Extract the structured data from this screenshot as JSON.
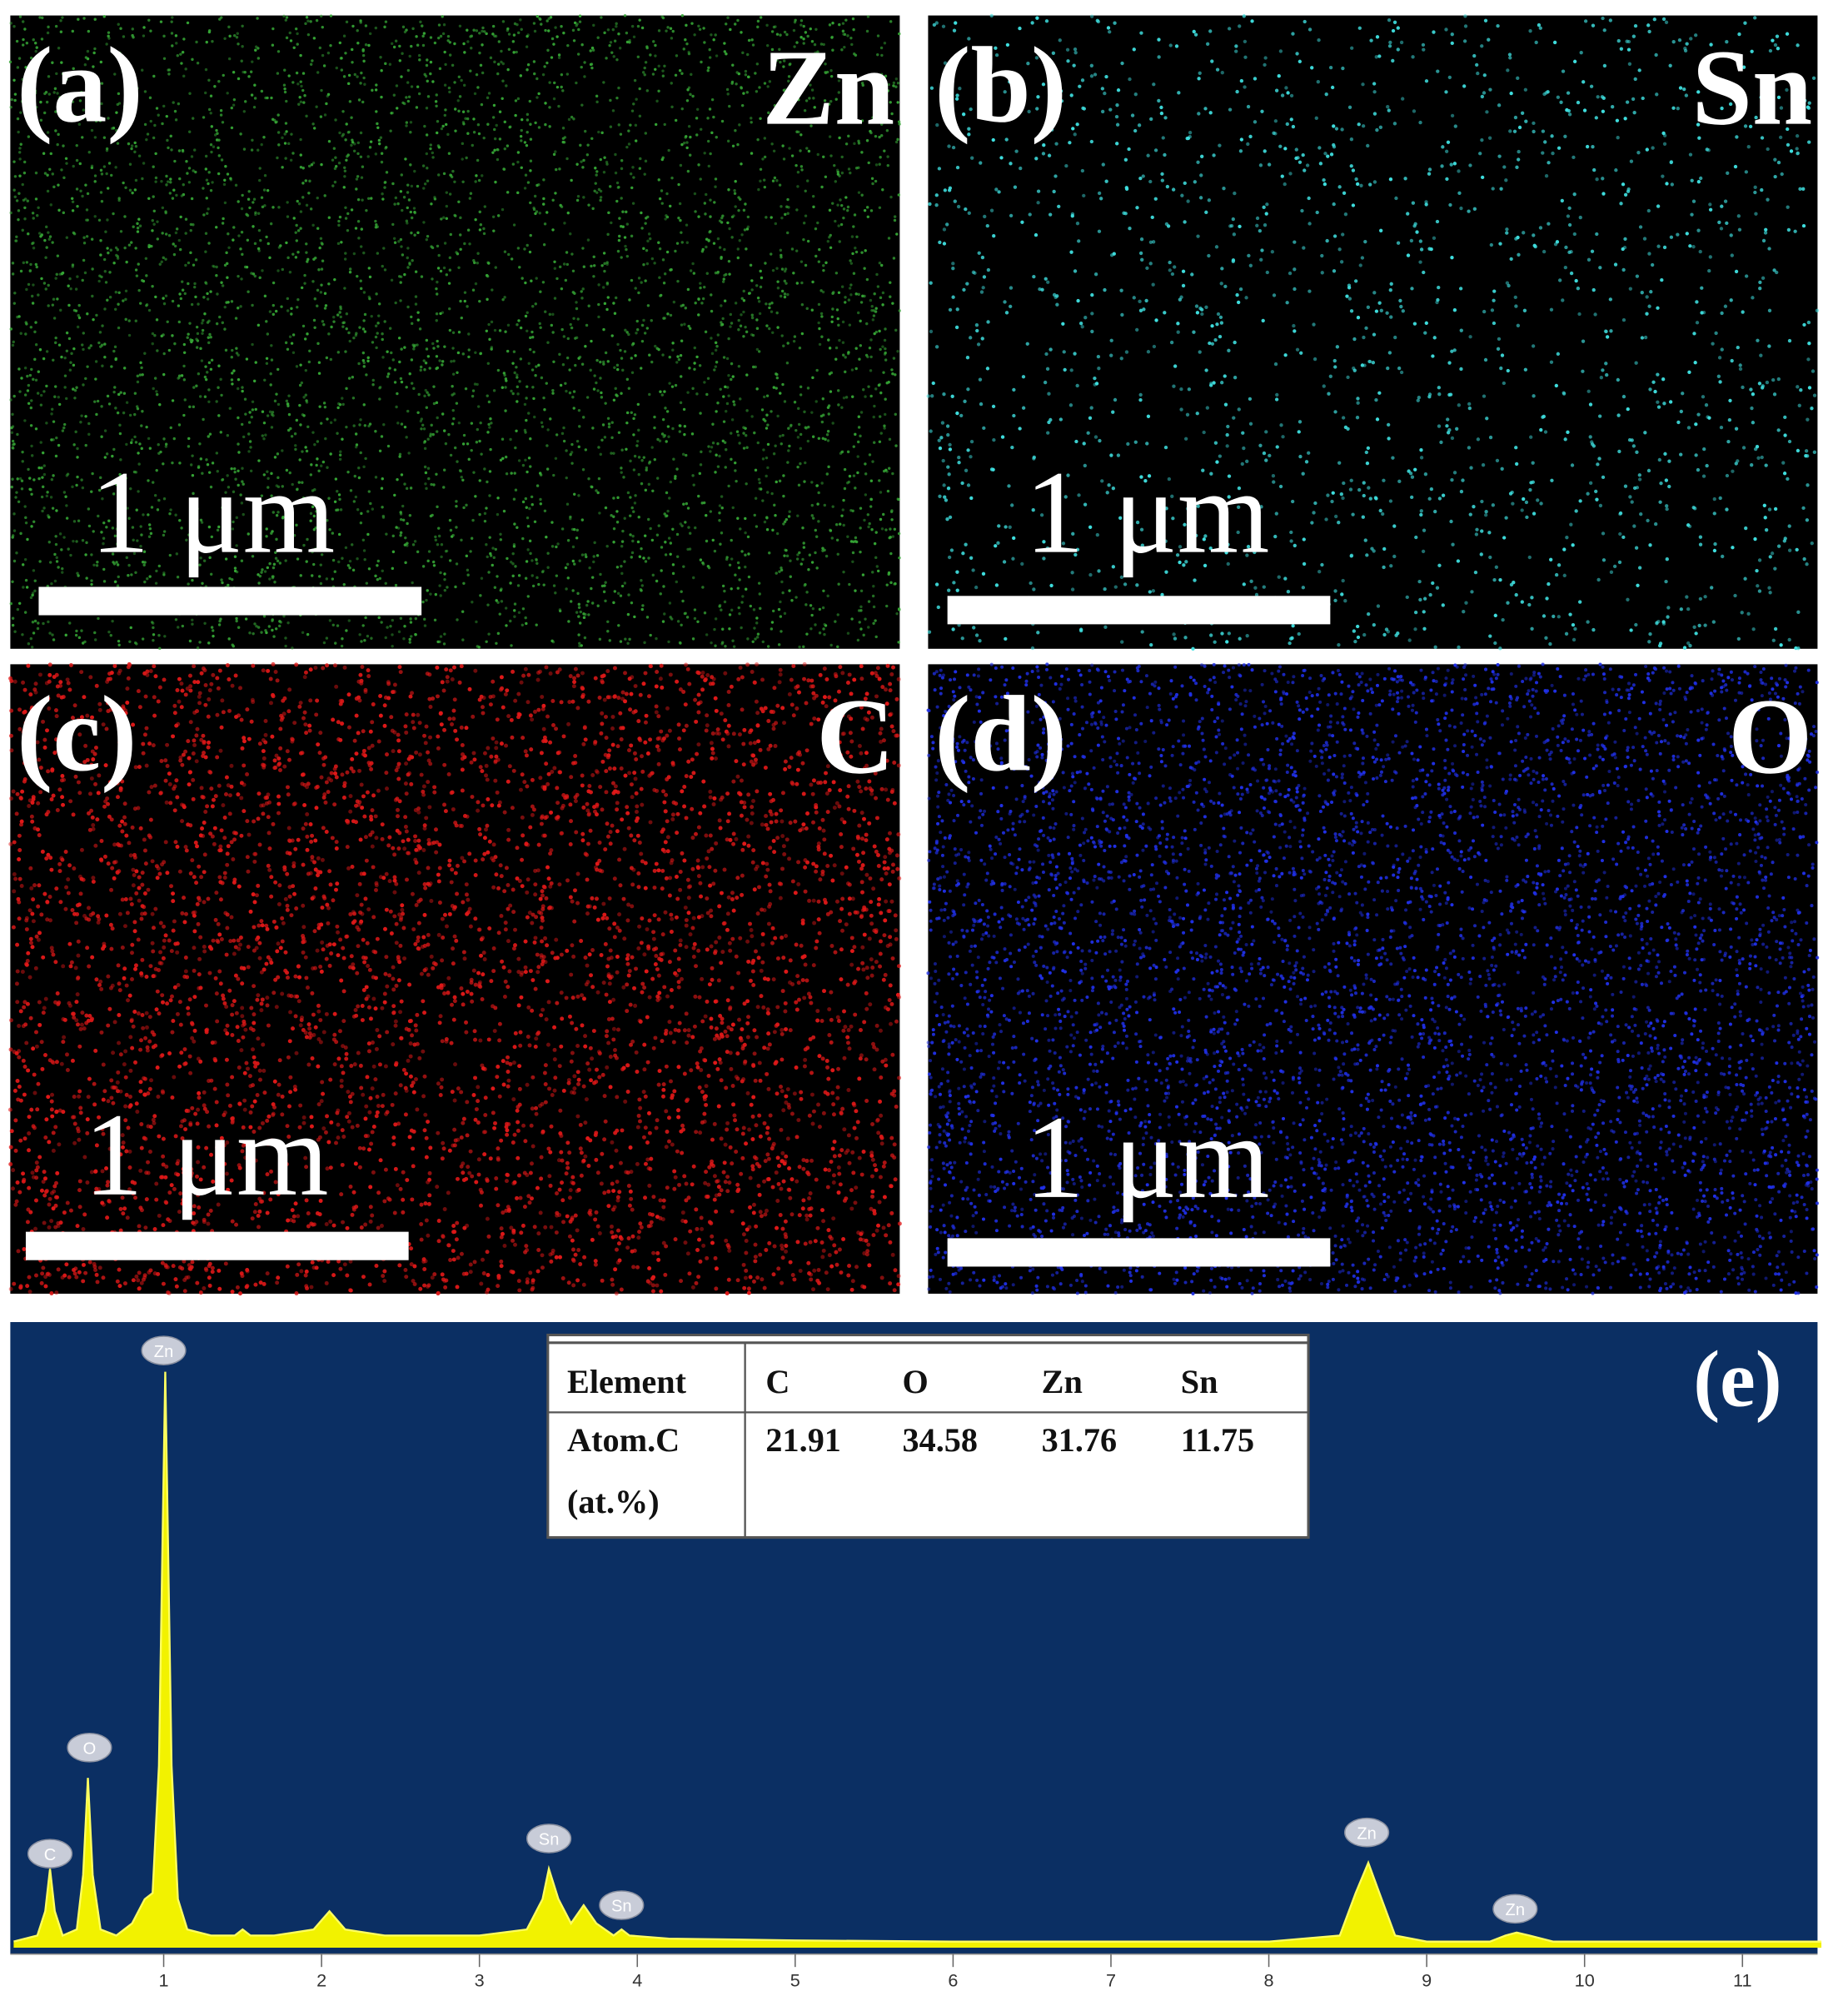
{
  "panels": [
    {
      "label": "(a)",
      "element": "Zn",
      "scale_text": "1 μm",
      "color": "#35a535"
    },
    {
      "label": "(b)",
      "element": "Sn",
      "scale_text": "1 μm",
      "color": "#3fe0e0"
    },
    {
      "label": "(c)",
      "element": "C",
      "scale_text": "1 μm",
      "color": "#e01818"
    },
    {
      "label": "(d)",
      "element": "O",
      "scale_text": "1 μm",
      "color": "#2030e8"
    }
  ],
  "table": {
    "header": [
      "Element",
      "C",
      "O",
      "Zn",
      "Sn"
    ],
    "row_label": [
      "Atom.C",
      "(at.%)"
    ],
    "values": [
      21.91,
      34.58,
      31.76,
      11.75
    ]
  },
  "chart_data": {
    "type": "area",
    "label": "(e)",
    "color": "#f2f200",
    "background": "#0b2f63",
    "x": [
      0.05,
      0.2,
      0.25,
      0.28,
      0.31,
      0.36,
      0.45,
      0.49,
      0.52,
      0.55,
      0.6,
      0.7,
      0.8,
      0.88,
      0.93,
      0.97,
      1.01,
      1.05,
      1.09,
      1.15,
      1.3,
      1.45,
      1.5,
      1.55,
      1.7,
      1.95,
      2.05,
      2.15,
      2.4,
      3.0,
      3.3,
      3.4,
      3.44,
      3.5,
      3.58,
      3.66,
      3.74,
      3.85,
      3.9,
      3.95,
      4.2,
      5,
      6,
      7,
      8,
      8.45,
      8.55,
      8.63,
      8.7,
      8.8,
      9.0,
      9.4,
      9.5,
      9.57,
      9.65,
      9.8,
      10.5,
      11.5
    ],
    "values": [
      1,
      2,
      6,
      13,
      6,
      2,
      3,
      12,
      28,
      12,
      3,
      2,
      4,
      8,
      9,
      30,
      95,
      30,
      8,
      3,
      2,
      2,
      3,
      2,
      2,
      3,
      6,
      3,
      2,
      2,
      3,
      8,
      13,
      8,
      4,
      7,
      4,
      2,
      3,
      2,
      1.5,
      1.2,
      1,
      1,
      1,
      2,
      9,
      14,
      9,
      2,
      1,
      1,
      2,
      2.5,
      2,
      1,
      1,
      1
    ],
    "xlim": [
      0,
      11.5
    ],
    "ylim": [
      0,
      100
    ],
    "xticks": [
      1,
      2,
      3,
      4,
      5,
      6,
      7,
      8,
      9,
      10,
      11
    ],
    "peak_labels": [
      {
        "text": "C",
        "x": 0.28,
        "y": 15.5
      },
      {
        "text": "O",
        "x": 0.53,
        "y": 33
      },
      {
        "text": "Zn",
        "x": 1.0,
        "y": 98.5
      },
      {
        "text": "Sn",
        "x": 3.44,
        "y": 18
      },
      {
        "text": "Sn",
        "x": 3.9,
        "y": 7
      },
      {
        "text": "Zn",
        "x": 8.62,
        "y": 19
      },
      {
        "text": "Zn",
        "x": 9.56,
        "y": 6.4
      }
    ]
  }
}
